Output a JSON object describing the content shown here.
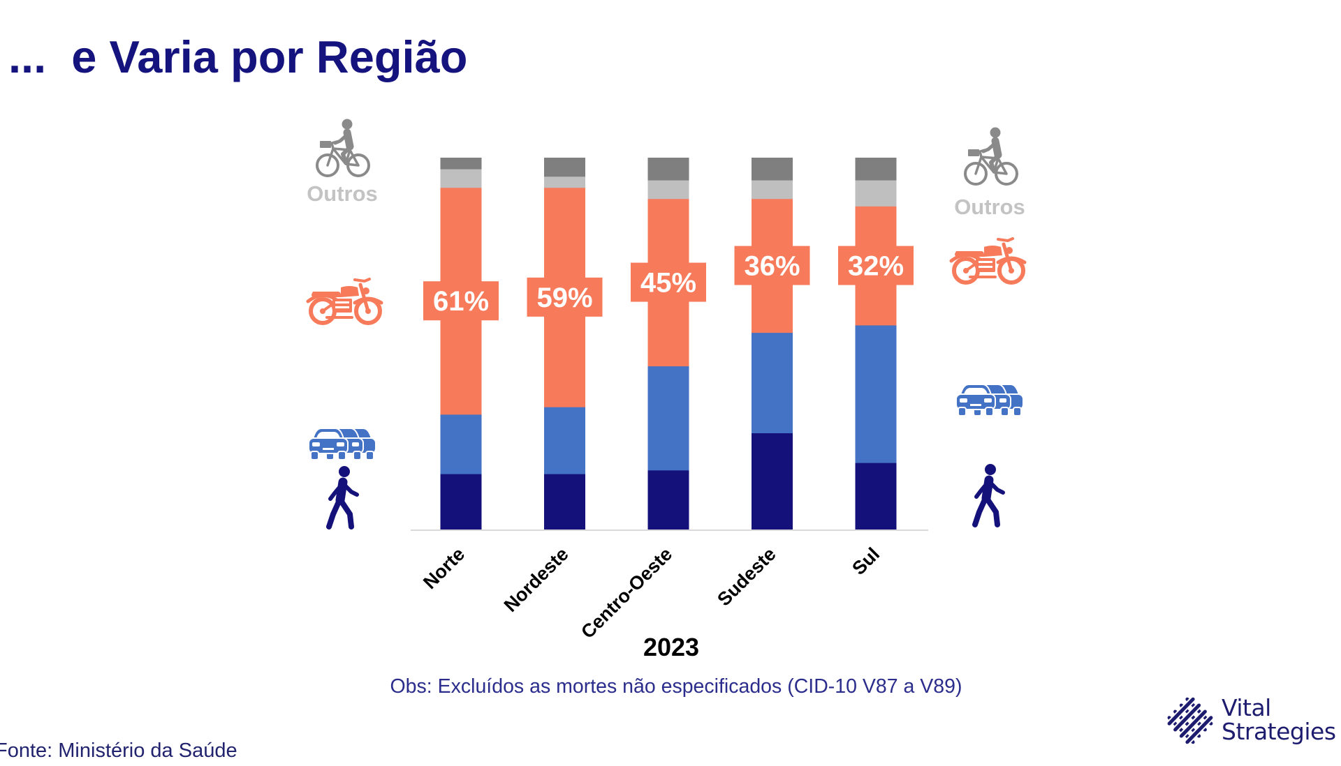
{
  "page": {
    "title": "...  e Varia por Região",
    "note": "Obs: Excluídos as mortes não especificados (CID-10 V87 a V89)",
    "source": "Fonte: Ministério da Saúde"
  },
  "logo": {
    "icon": "woven-lattice-logo-icon",
    "name_line1": "Vital",
    "name_line2": "Strategies",
    "color": "#1d1c6f"
  },
  "colors": {
    "title": "#15137d",
    "note_text": "#2b2d8c",
    "source_text": "#22236e",
    "axis_line": "#d9d9d9"
  },
  "legend": {
    "left": [
      "bicycle-icon",
      "motorcycle-icon",
      "car-icon",
      "pedestrian-icon"
    ],
    "right": [
      "bicycle-icon",
      "motorcycle-icon",
      "car-icon",
      "pedestrian-icon"
    ]
  },
  "chart_data": {
    "type": "bar",
    "stacked": true,
    "categories": [
      "Norte",
      "Nordeste",
      "Centro-Oeste",
      "Sudeste",
      "Sul"
    ],
    "xlabel": "2023",
    "ylim": [
      0,
      100
    ],
    "grid": false,
    "series": [
      {
        "icon": "pedestrian-icon",
        "color": "#14127a",
        "values": [
          15,
          15,
          16,
          26,
          18
        ]
      },
      {
        "icon": "car-icon",
        "color": "#4472c4",
        "values": [
          16,
          18,
          28,
          27,
          37
        ]
      },
      {
        "icon": "motorcycle-icon",
        "color": "#f77b5b",
        "values": [
          61,
          59,
          45,
          36,
          32
        ],
        "data_labels": [
          "61%",
          "59%",
          "45%",
          "36%",
          "32%"
        ]
      },
      {
        "label": "Outros",
        "color": "#bfbfbf",
        "values": [
          5,
          3,
          5,
          5,
          7
        ]
      },
      {
        "icon": "bicycle-icon",
        "color": "#7f7f7f",
        "values": [
          3,
          5,
          6,
          6,
          6
        ]
      }
    ]
  }
}
